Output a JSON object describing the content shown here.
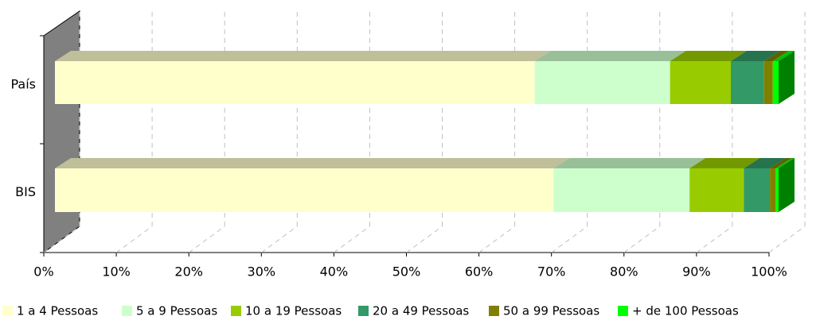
{
  "chart_data": {
    "type": "bar",
    "orientation": "horizontal",
    "stacked": true,
    "categories": [
      "País",
      "BIS"
    ],
    "series": [
      {
        "name": "1 a 4 Pessoas",
        "color": "#ffffcc",
        "values": [
          66.3,
          68.9
        ]
      },
      {
        "name": "5 a 9 Pessoas",
        "color": "#ccffcc",
        "values": [
          18.7,
          18.8
        ]
      },
      {
        "name": "10 a 19 Pessoas",
        "color": "#99cc00",
        "values": [
          8.4,
          7.5
        ]
      },
      {
        "name": "20 a 49 Pessoas",
        "color": "#339966",
        "values": [
          4.6,
          3.6
        ]
      },
      {
        "name": "50 a 99 Pessoas",
        "color": "#808000",
        "values": [
          1.2,
          0.8
        ]
      },
      {
        "name": "+ de 100 Pessoas",
        "color": "#00ff00",
        "values": [
          0.8,
          0.4
        ]
      }
    ],
    "xlim": [
      0,
      100
    ],
    "xticks": [
      {
        "value": 0,
        "label": "0%"
      },
      {
        "value": 10,
        "label": "10%"
      },
      {
        "value": 20,
        "label": "20%"
      },
      {
        "value": 30,
        "label": "30%"
      },
      {
        "value": 40,
        "label": "40%"
      },
      {
        "value": 50,
        "label": "50%"
      },
      {
        "value": 60,
        "label": "60%"
      },
      {
        "value": 70,
        "label": "70%"
      },
      {
        "value": 80,
        "label": "80%"
      },
      {
        "value": 90,
        "label": "90%"
      },
      {
        "value": 100,
        "label": "100%"
      }
    ],
    "grid": true,
    "legend": "bottom"
  }
}
